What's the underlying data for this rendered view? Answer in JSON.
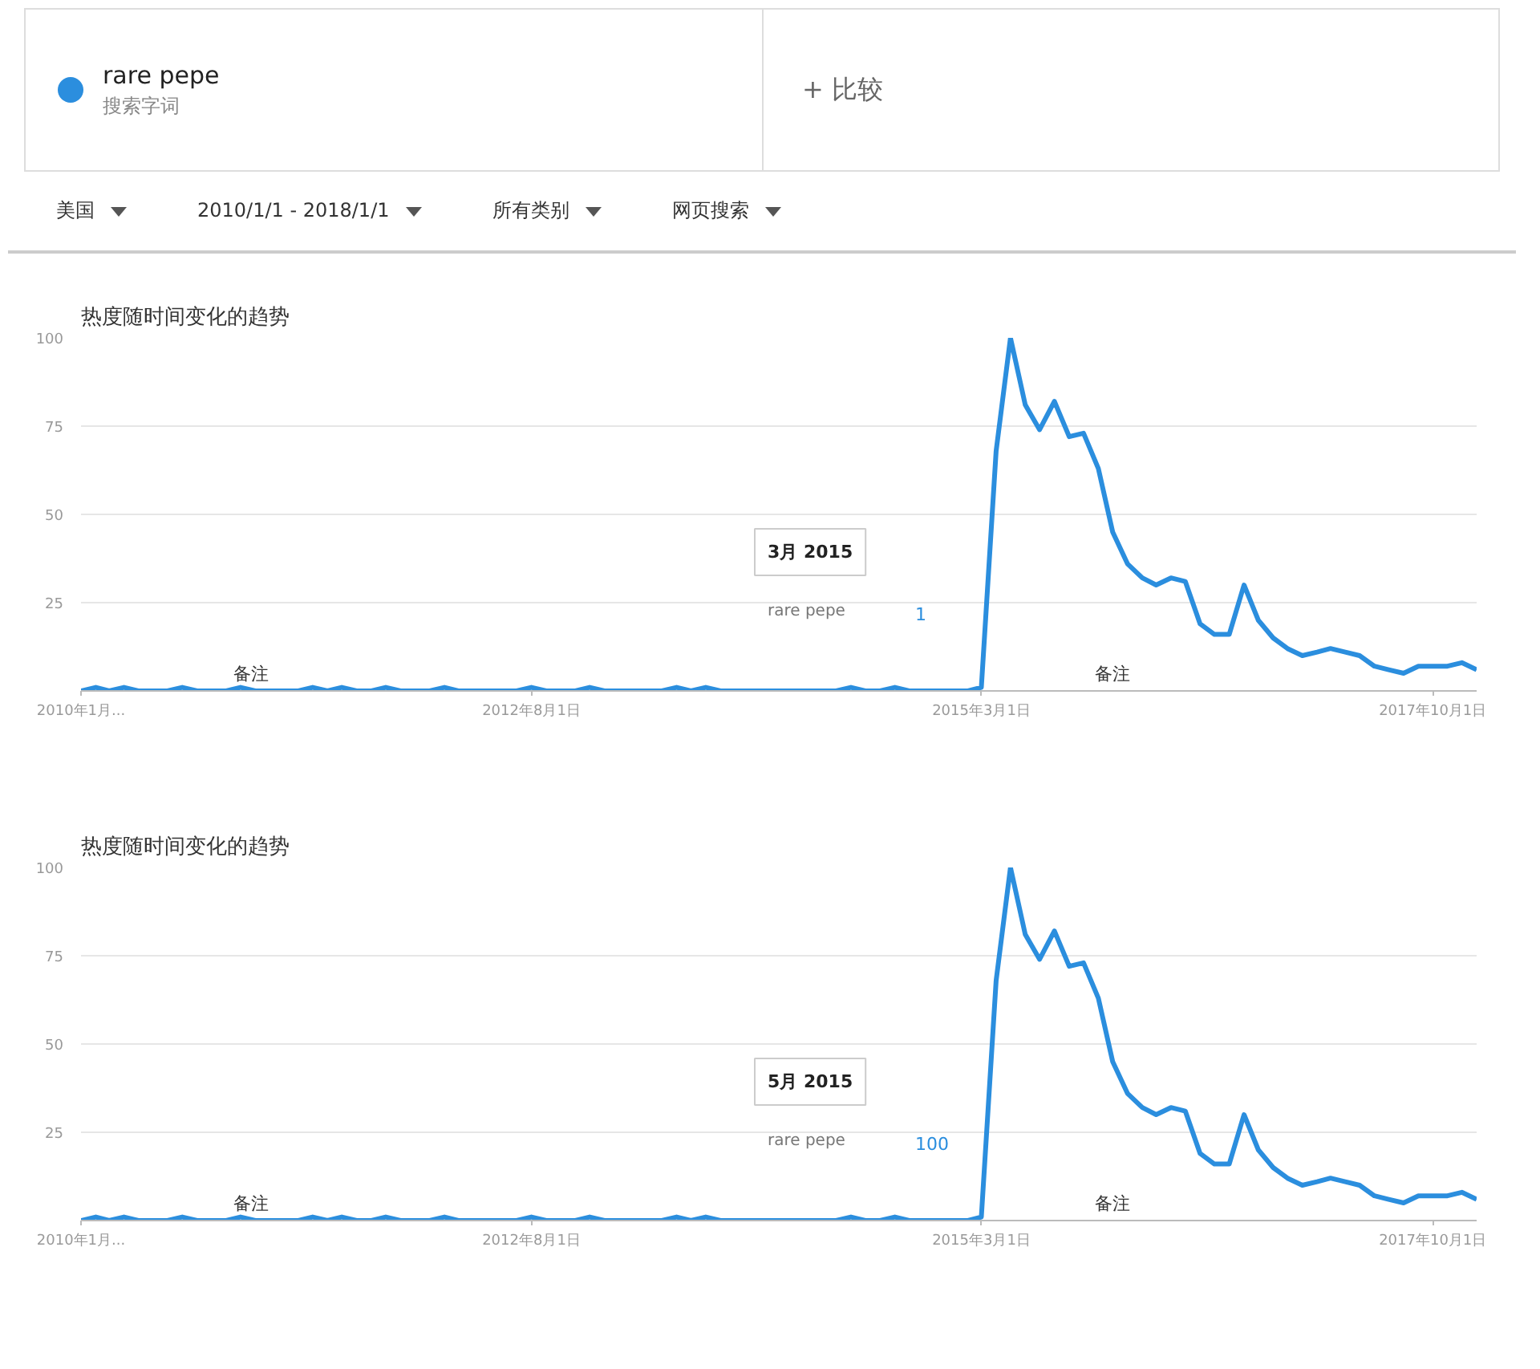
{
  "chart_data": [
    {
      "type": "line",
      "title": "热度随时间变化的趋势",
      "legend": "top",
      "annotations": [
        "搜索字词",
        "+ 比较",
        "美国",
        "2010/1/1 - 2018/1/1",
        "所有类别",
        "网页搜索",
        "备注",
        "备注",
        "3月 2015",
        "1"
      ],
      "xlim": [
        "2010-01",
        "2018-01"
      ],
      "ylim": [
        0,
        100
      ],
      "xticks": [
        {
          "value": "2010-01",
          "label": "2010年1月..."
        },
        {
          "value": "2012-08",
          "label": "2012年8月1日"
        },
        {
          "value": "2015-03",
          "label": "2015年3月1日"
        },
        {
          "value": "2017-10",
          "label": "2017年10月1日"
        }
      ],
      "yticks": [
        {
          "value": 0,
          "label": null
        },
        25,
        50,
        75,
        100
      ],
      "grid": "y",
      "marker": "none",
      "line_style": "solid",
      "x": [
        "2010-01",
        "2010-02",
        "2010-03",
        "2010-04",
        "2010-05",
        "2010-06",
        "2010-07",
        "2010-08",
        "2010-09",
        "2010-10",
        "2010-11",
        "2010-12",
        "2011-01",
        "2011-02",
        "2011-03",
        "2011-04",
        "2011-05",
        "2011-06",
        "2011-07",
        "2011-08",
        "2011-09",
        "2011-10",
        "2011-11",
        "2011-12",
        "2012-01",
        "2012-02",
        "2012-03",
        "2012-04",
        "2012-05",
        "2012-06",
        "2012-07",
        "2012-08",
        "2012-09",
        "2012-10",
        "2012-11",
        "2012-12",
        "2013-01",
        "2013-02",
        "2013-03",
        "2013-04",
        "2013-05",
        "2013-06",
        "2013-07",
        "2013-08",
        "2013-09",
        "2013-10",
        "2013-11",
        "2013-12",
        "2014-01",
        "2014-02",
        "2014-03",
        "2014-04",
        "2014-05",
        "2014-06",
        "2014-07",
        "2014-08",
        "2014-09",
        "2014-10",
        "2014-11",
        "2014-12",
        "2015-01",
        "2015-02",
        "2015-03",
        "2015-04",
        "2015-05",
        "2015-06",
        "2015-07",
        "2015-08",
        "2015-09",
        "2015-10",
        "2015-11",
        "2015-12",
        "2016-01",
        "2016-02",
        "2016-03",
        "2016-04",
        "2016-05",
        "2016-06",
        "2016-07",
        "2016-08",
        "2016-09",
        "2016-10",
        "2016-11",
        "2016-12",
        "2017-01",
        "2017-02",
        "2017-03",
        "2017-04",
        "2017-05",
        "2017-06",
        "2017-07",
        "2017-08",
        "2017-09",
        "2017-10",
        "2017-11",
        "2017-12",
        "2018-01"
      ],
      "series": [
        {
          "name": "rare pepe",
          "color": "#2b8ede",
          "values": [
            0,
            1,
            0,
            1,
            0,
            0,
            0,
            1,
            0,
            0,
            0,
            1,
            0,
            0,
            0,
            0,
            1,
            0,
            1,
            0,
            0,
            1,
            0,
            0,
            0,
            1,
            0,
            0,
            0,
            0,
            0,
            1,
            0,
            0,
            0,
            1,
            0,
            0,
            0,
            0,
            0,
            1,
            0,
            1,
            0,
            0,
            0,
            0,
            0,
            0,
            0,
            0,
            0,
            1,
            0,
            0,
            1,
            0,
            0,
            0,
            0,
            0,
            1,
            68,
            100,
            81,
            74,
            82,
            72,
            73,
            63,
            45,
            36,
            32,
            30,
            32,
            31,
            19,
            16,
            16,
            30,
            20,
            15,
            12,
            10,
            11,
            12,
            11,
            10,
            7,
            6,
            5,
            7,
            7,
            7,
            8,
            6
          ]
        }
      ]
    },
    {
      "type": "line",
      "title": "热度随时间变化的趋势",
      "annotations": [
        "备注",
        "备注",
        "5月 2015",
        "100"
      ],
      "xlim": [
        "2010-01",
        "2018-01"
      ],
      "ylim": [
        0,
        100
      ],
      "xticks": [
        {
          "value": "2010-01",
          "label": "2010年1月..."
        },
        {
          "value": "2012-08",
          "label": "2012年8月1日"
        },
        {
          "value": "2015-03",
          "label": "2015年3月1日"
        },
        {
          "value": "2017-10",
          "label": "2017年10月1日"
        }
      ],
      "yticks": [
        {
          "value": 0,
          "label": null
        },
        25,
        50,
        75,
        100
      ],
      "grid": "y",
      "marker": "none",
      "line_style": "solid",
      "x": [
        "2010-01",
        "2010-02",
        "2010-03",
        "2010-04",
        "2010-05",
        "2010-06",
        "2010-07",
        "2010-08",
        "2010-09",
        "2010-10",
        "2010-11",
        "2010-12",
        "2011-01",
        "2011-02",
        "2011-03",
        "2011-04",
        "2011-05",
        "2011-06",
        "2011-07",
        "2011-08",
        "2011-09",
        "2011-10",
        "2011-11",
        "2011-12",
        "2012-01",
        "2012-02",
        "2012-03",
        "2012-04",
        "2012-05",
        "2012-06",
        "2012-07",
        "2012-08",
        "2012-09",
        "2012-10",
        "2012-11",
        "2012-12",
        "2013-01",
        "2013-02",
        "2013-03",
        "2013-04",
        "2013-05",
        "2013-06",
        "2013-07",
        "2013-08",
        "2013-09",
        "2013-10",
        "2013-11",
        "2013-12",
        "2014-01",
        "2014-02",
        "2014-03",
        "2014-04",
        "2014-05",
        "2014-06",
        "2014-07",
        "2014-08",
        "2014-09",
        "2014-10",
        "2014-11",
        "2014-12",
        "2015-01",
        "2015-02",
        "2015-03",
        "2015-04",
        "2015-05",
        "2015-06",
        "2015-07",
        "2015-08",
        "2015-09",
        "2015-10",
        "2015-11",
        "2015-12",
        "2016-01",
        "2016-02",
        "2016-03",
        "2016-04",
        "2016-05",
        "2016-06",
        "2016-07",
        "2016-08",
        "2016-09",
        "2016-10",
        "2016-11",
        "2016-12",
        "2017-01",
        "2017-02",
        "2017-03",
        "2017-04",
        "2017-05",
        "2017-06",
        "2017-07",
        "2017-08",
        "2017-09",
        "2017-10",
        "2017-11",
        "2017-12",
        "2018-01"
      ],
      "series": [
        {
          "name": "rare pepe",
          "color": "#2b8ede",
          "values": [
            0,
            1,
            0,
            1,
            0,
            0,
            0,
            1,
            0,
            0,
            0,
            1,
            0,
            0,
            0,
            0,
            1,
            0,
            1,
            0,
            0,
            1,
            0,
            0,
            0,
            1,
            0,
            0,
            0,
            0,
            0,
            1,
            0,
            0,
            0,
            1,
            0,
            0,
            0,
            0,
            0,
            1,
            0,
            1,
            0,
            0,
            0,
            0,
            0,
            0,
            0,
            0,
            0,
            1,
            0,
            0,
            1,
            0,
            0,
            0,
            0,
            0,
            1,
            68,
            100,
            81,
            74,
            82,
            72,
            73,
            63,
            45,
            36,
            32,
            30,
            32,
            31,
            19,
            16,
            16,
            30,
            20,
            15,
            12,
            10,
            11,
            12,
            11,
            10,
            7,
            6,
            5,
            7,
            7,
            7,
            8,
            6
          ]
        }
      ]
    }
  ]
}
